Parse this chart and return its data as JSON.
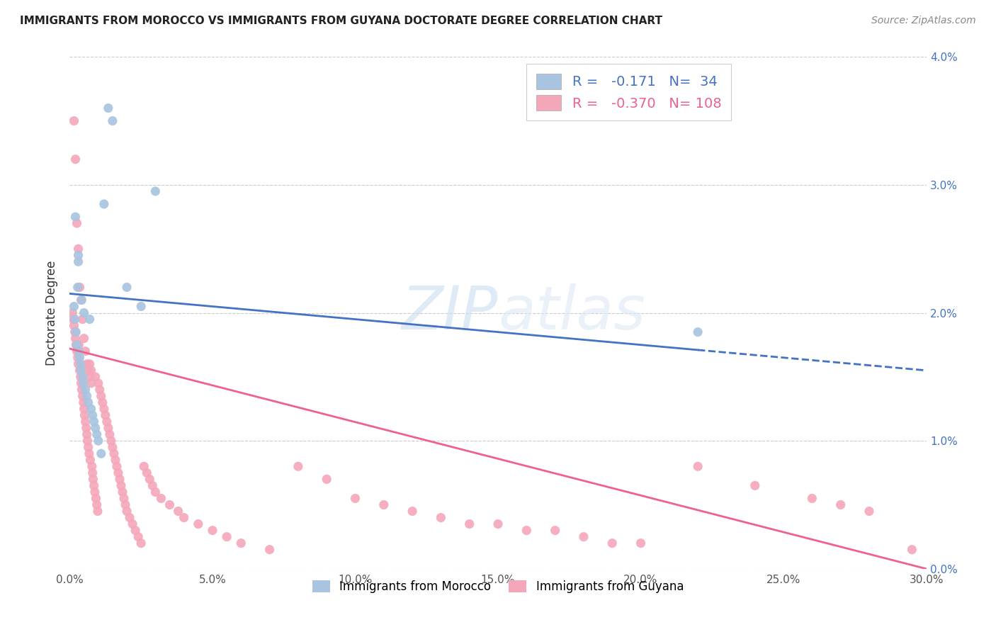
{
  "title": "IMMIGRANTS FROM MOROCCO VS IMMIGRANTS FROM GUYANA DOCTORATE DEGREE CORRELATION CHART",
  "source": "Source: ZipAtlas.com",
  "ylabel": "Doctorate Degree",
  "xlim": [
    0.0,
    30.0
  ],
  "ylim": [
    0.0,
    4.0
  ],
  "legend_r_morocco": "-0.171",
  "legend_n_morocco": "34",
  "legend_r_guyana": "-0.370",
  "legend_n_guyana": "108",
  "morocco_color": "#a8c4e0",
  "guyana_color": "#f4a7b9",
  "morocco_line_color": "#4472c4",
  "guyana_line_color": "#ee6090",
  "morocco_line_y0": 2.15,
  "morocco_line_y1": 1.55,
  "guyana_line_y0": 1.72,
  "guyana_line_y1": 0.0,
  "morocco_max_x": 22.0,
  "guyana_max_x": 30.0,
  "morocco_scatter_x": [
    0.15,
    0.18,
    0.22,
    0.25,
    0.28,
    0.3,
    0.32,
    0.35,
    0.38,
    0.4,
    0.42,
    0.45,
    0.48,
    0.5,
    0.55,
    0.6,
    0.65,
    0.7,
    0.75,
    0.8,
    0.85,
    0.9,
    0.95,
    1.0,
    1.1,
    1.2,
    1.35,
    1.5,
    2.0,
    2.5,
    3.0,
    0.2,
    0.3,
    22.0
  ],
  "morocco_scatter_y": [
    2.05,
    1.95,
    1.85,
    1.75,
    2.2,
    2.4,
    1.7,
    1.65,
    1.6,
    1.55,
    2.1,
    1.5,
    1.45,
    2.0,
    1.4,
    1.35,
    1.3,
    1.95,
    1.25,
    1.2,
    1.15,
    1.1,
    1.05,
    1.0,
    0.9,
    2.85,
    3.6,
    3.5,
    2.2,
    2.05,
    2.95,
    2.75,
    2.45,
    1.85
  ],
  "guyana_scatter_x": [
    0.1,
    0.12,
    0.15,
    0.18,
    0.2,
    0.22,
    0.25,
    0.28,
    0.3,
    0.32,
    0.35,
    0.38,
    0.4,
    0.42,
    0.45,
    0.48,
    0.5,
    0.52,
    0.55,
    0.58,
    0.6,
    0.62,
    0.65,
    0.68,
    0.7,
    0.72,
    0.75,
    0.78,
    0.8,
    0.82,
    0.85,
    0.88,
    0.9,
    0.92,
    0.95,
    0.98,
    1.0,
    1.05,
    1.1,
    1.15,
    1.2,
    1.25,
    1.3,
    1.35,
    1.4,
    1.45,
    1.5,
    1.55,
    1.6,
    1.65,
    1.7,
    1.75,
    1.8,
    1.85,
    1.9,
    1.95,
    2.0,
    2.1,
    2.2,
    2.3,
    2.4,
    2.5,
    2.6,
    2.7,
    2.8,
    2.9,
    3.0,
    3.2,
    3.5,
    3.8,
    4.0,
    4.5,
    5.0,
    5.5,
    6.0,
    7.0,
    8.0,
    9.0,
    10.0,
    11.0,
    12.0,
    13.0,
    14.0,
    15.0,
    16.0,
    17.0,
    18.0,
    19.0,
    20.0,
    22.0,
    24.0,
    26.0,
    27.0,
    28.0,
    29.5,
    0.15,
    0.2,
    0.25,
    0.3,
    0.35,
    0.4,
    0.45,
    0.5,
    0.55,
    0.6,
    0.65,
    0.7,
    0.75
  ],
  "guyana_scatter_y": [
    2.0,
    1.95,
    1.9,
    1.85,
    1.8,
    1.75,
    1.7,
    1.65,
    1.6,
    1.75,
    1.55,
    1.5,
    1.45,
    1.4,
    1.35,
    1.3,
    1.25,
    1.2,
    1.15,
    1.1,
    1.05,
    1.0,
    0.95,
    0.9,
    1.6,
    0.85,
    1.55,
    0.8,
    0.75,
    0.7,
    0.65,
    0.6,
    1.5,
    0.55,
    0.5,
    0.45,
    1.45,
    1.4,
    1.35,
    1.3,
    1.25,
    1.2,
    1.15,
    1.1,
    1.05,
    1.0,
    0.95,
    0.9,
    0.85,
    0.8,
    0.75,
    0.7,
    0.65,
    0.6,
    0.55,
    0.5,
    0.45,
    0.4,
    0.35,
    0.3,
    0.25,
    0.2,
    0.8,
    0.75,
    0.7,
    0.65,
    0.6,
    0.55,
    0.5,
    0.45,
    0.4,
    0.35,
    0.3,
    0.25,
    0.2,
    0.15,
    0.8,
    0.7,
    0.55,
    0.5,
    0.45,
    0.4,
    0.35,
    0.35,
    0.3,
    0.3,
    0.25,
    0.2,
    0.2,
    0.8,
    0.65,
    0.55,
    0.5,
    0.45,
    0.15,
    3.5,
    3.2,
    2.7,
    2.5,
    2.2,
    2.1,
    1.95,
    1.8,
    1.7,
    1.6,
    1.55,
    1.5,
    1.45
  ]
}
